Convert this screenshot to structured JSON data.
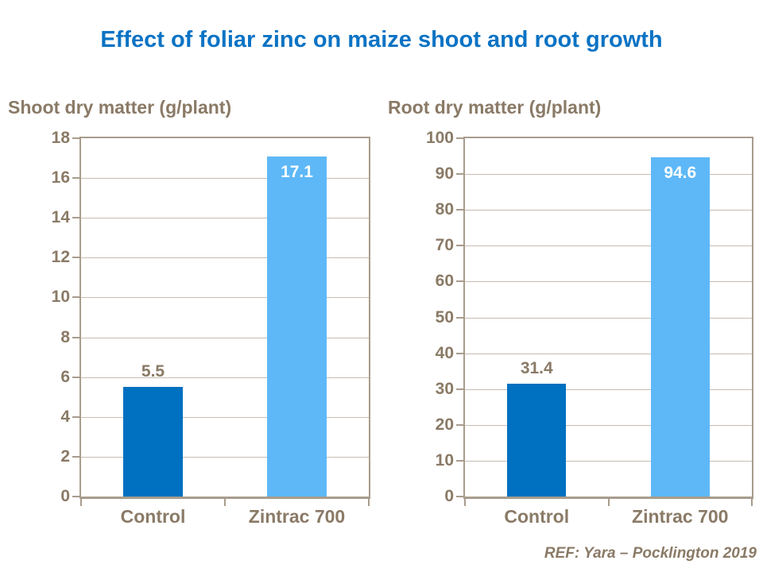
{
  "title": "Effect of foliar zinc on maize shoot and root growth",
  "reference": "REF: Yara – Pocklington 2019",
  "colors": {
    "title_blue": "#0b73c4",
    "text_taupe": "#8a7a66",
    "axis_line": "#a89c8c",
    "grid_line": "#c6bdb0",
    "bar_dark_blue": "#0070c0",
    "bar_light_blue": "#5eb8f7",
    "value_label_inside": "#ffffff"
  },
  "chart_data": [
    {
      "type": "bar",
      "title": "Shoot dry matter (g/plant)",
      "categories": [
        "Control",
        "Zintrac 700"
      ],
      "values": [
        5.5,
        17.1
      ],
      "value_labels": [
        "5.5",
        "17.1"
      ],
      "value_label_placement": [
        "above",
        "inside"
      ],
      "bar_colors": [
        "#0070c0",
        "#5eb8f7"
      ],
      "ylim": [
        0,
        18
      ],
      "ytick_step": 2,
      "grid": true,
      "legend": "none",
      "xlabel": "",
      "ylabel": "Shoot dry matter (g/plant)"
    },
    {
      "type": "bar",
      "title": "Root dry matter (g/plant)",
      "categories": [
        "Control",
        "Zintrac 700"
      ],
      "values": [
        31.4,
        94.6
      ],
      "value_labels": [
        "31.4",
        "94.6"
      ],
      "value_label_placement": [
        "above",
        "inside"
      ],
      "bar_colors": [
        "#0070c0",
        "#5eb8f7"
      ],
      "ylim": [
        0,
        100
      ],
      "ytick_step": 10,
      "grid": true,
      "legend": "none",
      "xlabel": "",
      "ylabel": "Root dry matter (g/plant)"
    }
  ]
}
